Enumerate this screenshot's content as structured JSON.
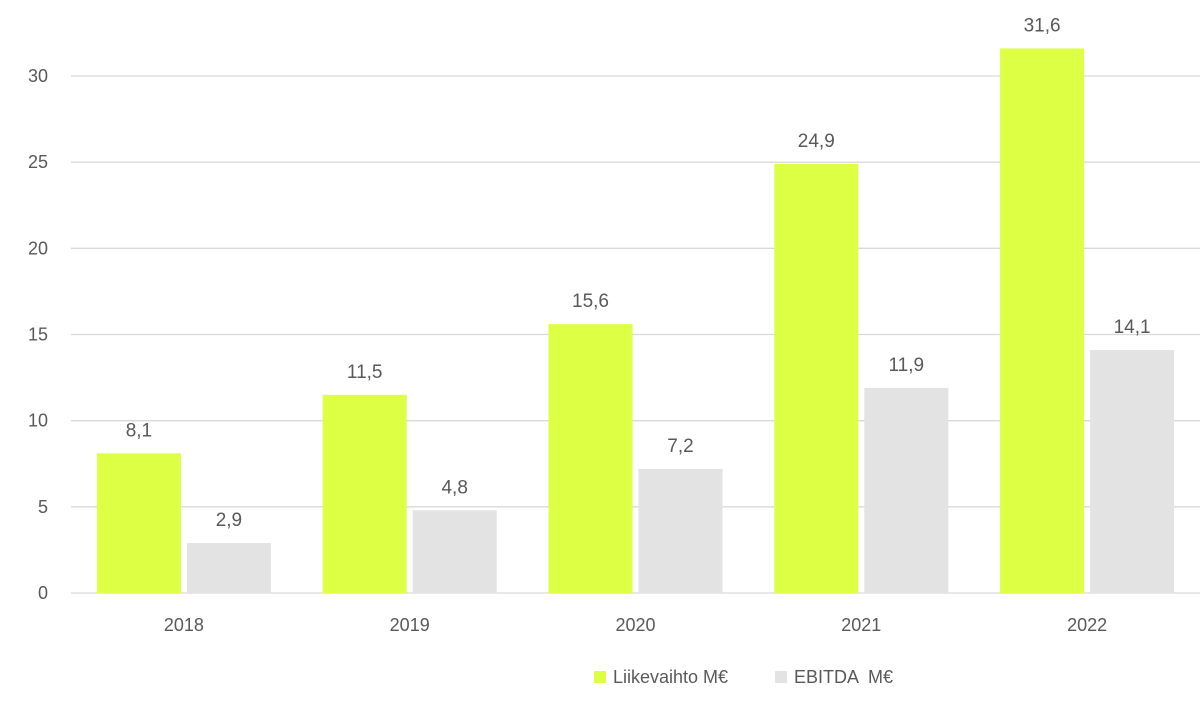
{
  "chart_data": {
    "type": "bar",
    "categories": [
      "2018",
      "2019",
      "2020",
      "2021",
      "2022"
    ],
    "series": [
      {
        "name": "Liikevaihto M€",
        "values": [
          8.1,
          11.5,
          15.6,
          24.9,
          31.6
        ],
        "labels": [
          "8,1",
          "11,5",
          "15,6",
          "24,9",
          "31,6"
        ],
        "color": "#DDFF44"
      },
      {
        "name": "EBITDA  M€",
        "values": [
          2.9,
          4.8,
          7.2,
          11.9,
          14.1
        ],
        "labels": [
          "2,9",
          "4,8",
          "7,2",
          "11,9",
          "14,1"
        ],
        "color": "#E3E3E3"
      }
    ],
    "yticks": [
      "0",
      "5",
      "10",
      "15",
      "20",
      "25",
      "30"
    ],
    "ylim": [
      0,
      30
    ],
    "grid": true,
    "legend_position": "bottom-center",
    "gridline_color": "#D9D9D9",
    "text_color": "#595959"
  }
}
